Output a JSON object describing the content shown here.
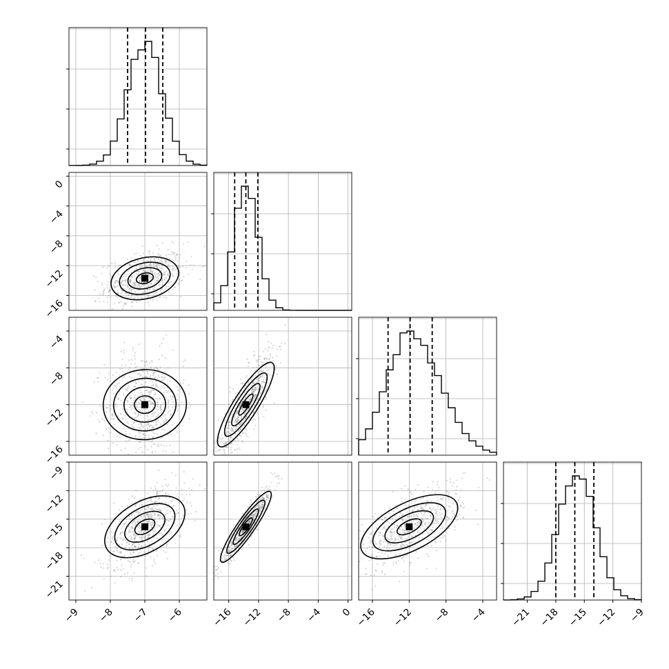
{
  "chart_data": {
    "type": "corner",
    "description_free": true,
    "parameters": [
      {
        "index": 0,
        "range": [
          -9.2,
          -5.2
        ],
        "ticks": [
          -9,
          -8,
          -7,
          -6
        ],
        "quantiles": [
          -7.5,
          -6.98,
          -6.48
        ],
        "peak": -7.0,
        "sigma": 0.5
      },
      {
        "index": 1,
        "range": [
          -18,
          0.5
        ],
        "ticks": [
          -16,
          -12,
          -8,
          -4,
          0
        ],
        "quantiles": [
          -15.2,
          -13.7,
          -12.1
        ],
        "peak": -13.7,
        "sigma": 1.6
      },
      {
        "index": 2,
        "range": [
          -17.5,
          -2.5
        ],
        "ticks": [
          -16,
          -12,
          -8,
          -4
        ],
        "quantiles": [
          -14.3,
          -11.9,
          -9.5
        ],
        "peak": -12.0,
        "sigma": 2.5
      },
      {
        "index": 3,
        "range": [
          -23.5,
          -9
        ],
        "ticks": [
          -21,
          -18,
          -15,
          -12,
          -9
        ],
        "quantiles": [
          -18.0,
          -16.0,
          -14.0
        ],
        "peak": -15.8,
        "sigma": 1.9
      }
    ],
    "pairs": [
      {
        "x": 0,
        "y": 1,
        "rho": 0.35
      },
      {
        "x": 0,
        "y": 2,
        "rho": 0.05
      },
      {
        "x": 1,
        "y": 2,
        "rho": 0.82
      },
      {
        "x": 0,
        "y": 3,
        "rho": 0.55
      },
      {
        "x": 1,
        "y": 3,
        "rho": 0.95
      },
      {
        "x": 2,
        "y": 3,
        "rho": 0.65
      }
    ],
    "histogram_bins": 20,
    "contour_levels_sigma": [
      0.5,
      1.0,
      1.5,
      2.0
    ],
    "grid": true,
    "quantile_line_style": "dashed",
    "colors": {
      "line": "#000000",
      "points": "#8a8a8a",
      "grid": "#b0b0b0"
    },
    "title": "",
    "xlabel": "",
    "ylabel": ""
  }
}
